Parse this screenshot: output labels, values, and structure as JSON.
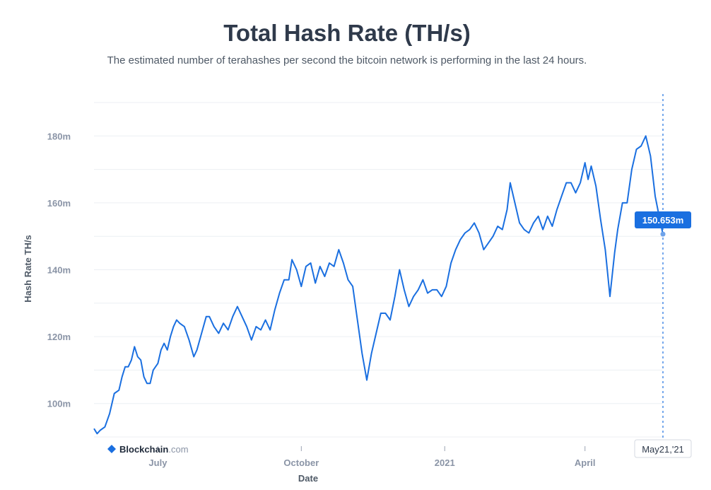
{
  "chart_data": {
    "type": "line",
    "title": "Total Hash Rate (TH/s)",
    "subtitle": "The estimated number of terahashes per second the bitcoin network is performing in the last 24 hours.",
    "xlabel": "Date",
    "ylabel": "Hash Rate TH/s",
    "ylim": [
      90,
      190
    ],
    "yticks": [
      100,
      120,
      140,
      160,
      180
    ],
    "ytick_labels": [
      "100m",
      "120m",
      "140m",
      "160m",
      "180m"
    ],
    "xticks": [
      {
        "label": "July",
        "x": "2020-07-01"
      },
      {
        "label": "October",
        "x": "2020-10-01"
      },
      {
        "label": "2021",
        "x": "2021-01-01"
      },
      {
        "label": "April",
        "x": "2021-04-01"
      }
    ],
    "x_range": [
      "2020-05-21",
      "2021-05-21"
    ],
    "grid": "horizontal",
    "line_color": "#1a6fe0",
    "series": [
      {
        "points": [
          [
            "2020-05-21",
            92.5
          ],
          [
            "2020-05-23",
            91
          ],
          [
            "2020-05-25",
            92
          ],
          [
            "2020-05-28",
            93
          ],
          [
            "2020-05-31",
            97
          ],
          [
            "2020-06-03",
            103
          ],
          [
            "2020-06-06",
            104
          ],
          [
            "2020-06-08",
            108
          ],
          [
            "2020-06-10",
            111
          ],
          [
            "2020-06-12",
            111
          ],
          [
            "2020-06-14",
            113
          ],
          [
            "2020-06-16",
            117
          ],
          [
            "2020-06-18",
            114
          ],
          [
            "2020-06-20",
            113
          ],
          [
            "2020-06-22",
            108
          ],
          [
            "2020-06-24",
            106
          ],
          [
            "2020-06-26",
            106
          ],
          [
            "2020-06-28",
            110
          ],
          [
            "2020-07-01",
            112
          ],
          [
            "2020-07-03",
            116
          ],
          [
            "2020-07-05",
            118
          ],
          [
            "2020-07-07",
            116
          ],
          [
            "2020-07-09",
            120
          ],
          [
            "2020-07-11",
            123
          ],
          [
            "2020-07-13",
            125
          ],
          [
            "2020-07-15",
            124
          ],
          [
            "2020-07-18",
            123
          ],
          [
            "2020-07-21",
            119
          ],
          [
            "2020-07-24",
            114
          ],
          [
            "2020-07-26",
            116
          ],
          [
            "2020-07-29",
            121
          ],
          [
            "2020-08-01",
            126
          ],
          [
            "2020-08-03",
            126
          ],
          [
            "2020-08-06",
            123
          ],
          [
            "2020-08-09",
            121
          ],
          [
            "2020-08-12",
            124
          ],
          [
            "2020-08-15",
            122
          ],
          [
            "2020-08-18",
            126
          ],
          [
            "2020-08-21",
            129
          ],
          [
            "2020-08-24",
            126
          ],
          [
            "2020-08-27",
            123
          ],
          [
            "2020-08-30",
            119
          ],
          [
            "2020-09-02",
            123
          ],
          [
            "2020-09-05",
            122
          ],
          [
            "2020-09-08",
            125
          ],
          [
            "2020-09-11",
            122
          ],
          [
            "2020-09-14",
            128
          ],
          [
            "2020-09-17",
            133
          ],
          [
            "2020-09-20",
            137
          ],
          [
            "2020-09-23",
            137
          ],
          [
            "2020-09-25",
            143
          ],
          [
            "2020-09-28",
            140
          ],
          [
            "2020-10-01",
            135
          ],
          [
            "2020-10-04",
            141
          ],
          [
            "2020-10-07",
            142
          ],
          [
            "2020-10-10",
            136
          ],
          [
            "2020-10-13",
            141
          ],
          [
            "2020-10-16",
            138
          ],
          [
            "2020-10-19",
            142
          ],
          [
            "2020-10-22",
            141
          ],
          [
            "2020-10-25",
            146
          ],
          [
            "2020-10-28",
            142
          ],
          [
            "2020-10-31",
            137
          ],
          [
            "2020-11-03",
            135
          ],
          [
            "2020-11-06",
            125
          ],
          [
            "2020-11-09",
            115
          ],
          [
            "2020-11-12",
            107
          ],
          [
            "2020-11-15",
            115
          ],
          [
            "2020-11-18",
            121
          ],
          [
            "2020-11-21",
            127
          ],
          [
            "2020-11-24",
            127
          ],
          [
            "2020-11-27",
            125
          ],
          [
            "2020-11-30",
            132
          ],
          [
            "2020-12-03",
            140
          ],
          [
            "2020-12-06",
            134
          ],
          [
            "2020-12-09",
            129
          ],
          [
            "2020-12-12",
            132
          ],
          [
            "2020-12-15",
            134
          ],
          [
            "2020-12-18",
            137
          ],
          [
            "2020-12-21",
            133
          ],
          [
            "2020-12-24",
            134
          ],
          [
            "2020-12-27",
            134
          ],
          [
            "2020-12-30",
            132
          ],
          [
            "2021-01-02",
            135
          ],
          [
            "2021-01-05",
            142
          ],
          [
            "2021-01-08",
            146
          ],
          [
            "2021-01-11",
            149
          ],
          [
            "2021-01-14",
            151
          ],
          [
            "2021-01-17",
            152
          ],
          [
            "2021-01-20",
            154
          ],
          [
            "2021-01-23",
            151
          ],
          [
            "2021-01-26",
            146
          ],
          [
            "2021-01-29",
            148
          ],
          [
            "2021-02-01",
            150
          ],
          [
            "2021-02-04",
            153
          ],
          [
            "2021-02-07",
            152
          ],
          [
            "2021-02-10",
            158
          ],
          [
            "2021-02-12",
            166
          ],
          [
            "2021-02-15",
            160
          ],
          [
            "2021-02-18",
            154
          ],
          [
            "2021-02-21",
            152
          ],
          [
            "2021-02-24",
            151
          ],
          [
            "2021-02-27",
            154
          ],
          [
            "2021-03-02",
            156
          ],
          [
            "2021-03-05",
            152
          ],
          [
            "2021-03-08",
            156
          ],
          [
            "2021-03-11",
            153
          ],
          [
            "2021-03-14",
            158
          ],
          [
            "2021-03-17",
            162
          ],
          [
            "2021-03-20",
            166
          ],
          [
            "2021-03-23",
            166
          ],
          [
            "2021-03-26",
            163
          ],
          [
            "2021-03-29",
            166
          ],
          [
            "2021-04-01",
            172
          ],
          [
            "2021-04-03",
            167
          ],
          [
            "2021-04-05",
            171
          ],
          [
            "2021-04-08",
            165
          ],
          [
            "2021-04-11",
            155
          ],
          [
            "2021-04-14",
            146
          ],
          [
            "2021-04-17",
            132
          ],
          [
            "2021-04-20",
            145
          ],
          [
            "2021-04-22",
            152
          ],
          [
            "2021-04-25",
            160
          ],
          [
            "2021-04-28",
            160
          ],
          [
            "2021-05-01",
            170
          ],
          [
            "2021-05-04",
            176
          ],
          [
            "2021-05-07",
            177
          ],
          [
            "2021-05-10",
            180
          ],
          [
            "2021-05-13",
            174
          ],
          [
            "2021-05-16",
            162
          ],
          [
            "2021-05-19",
            155
          ],
          [
            "2021-05-21",
            150.653
          ]
        ]
      }
    ],
    "tooltip": {
      "value": "150.653m",
      "date": "May21,'21"
    },
    "watermark": {
      "brand": "Blockchain",
      "suffix": ".com"
    }
  }
}
